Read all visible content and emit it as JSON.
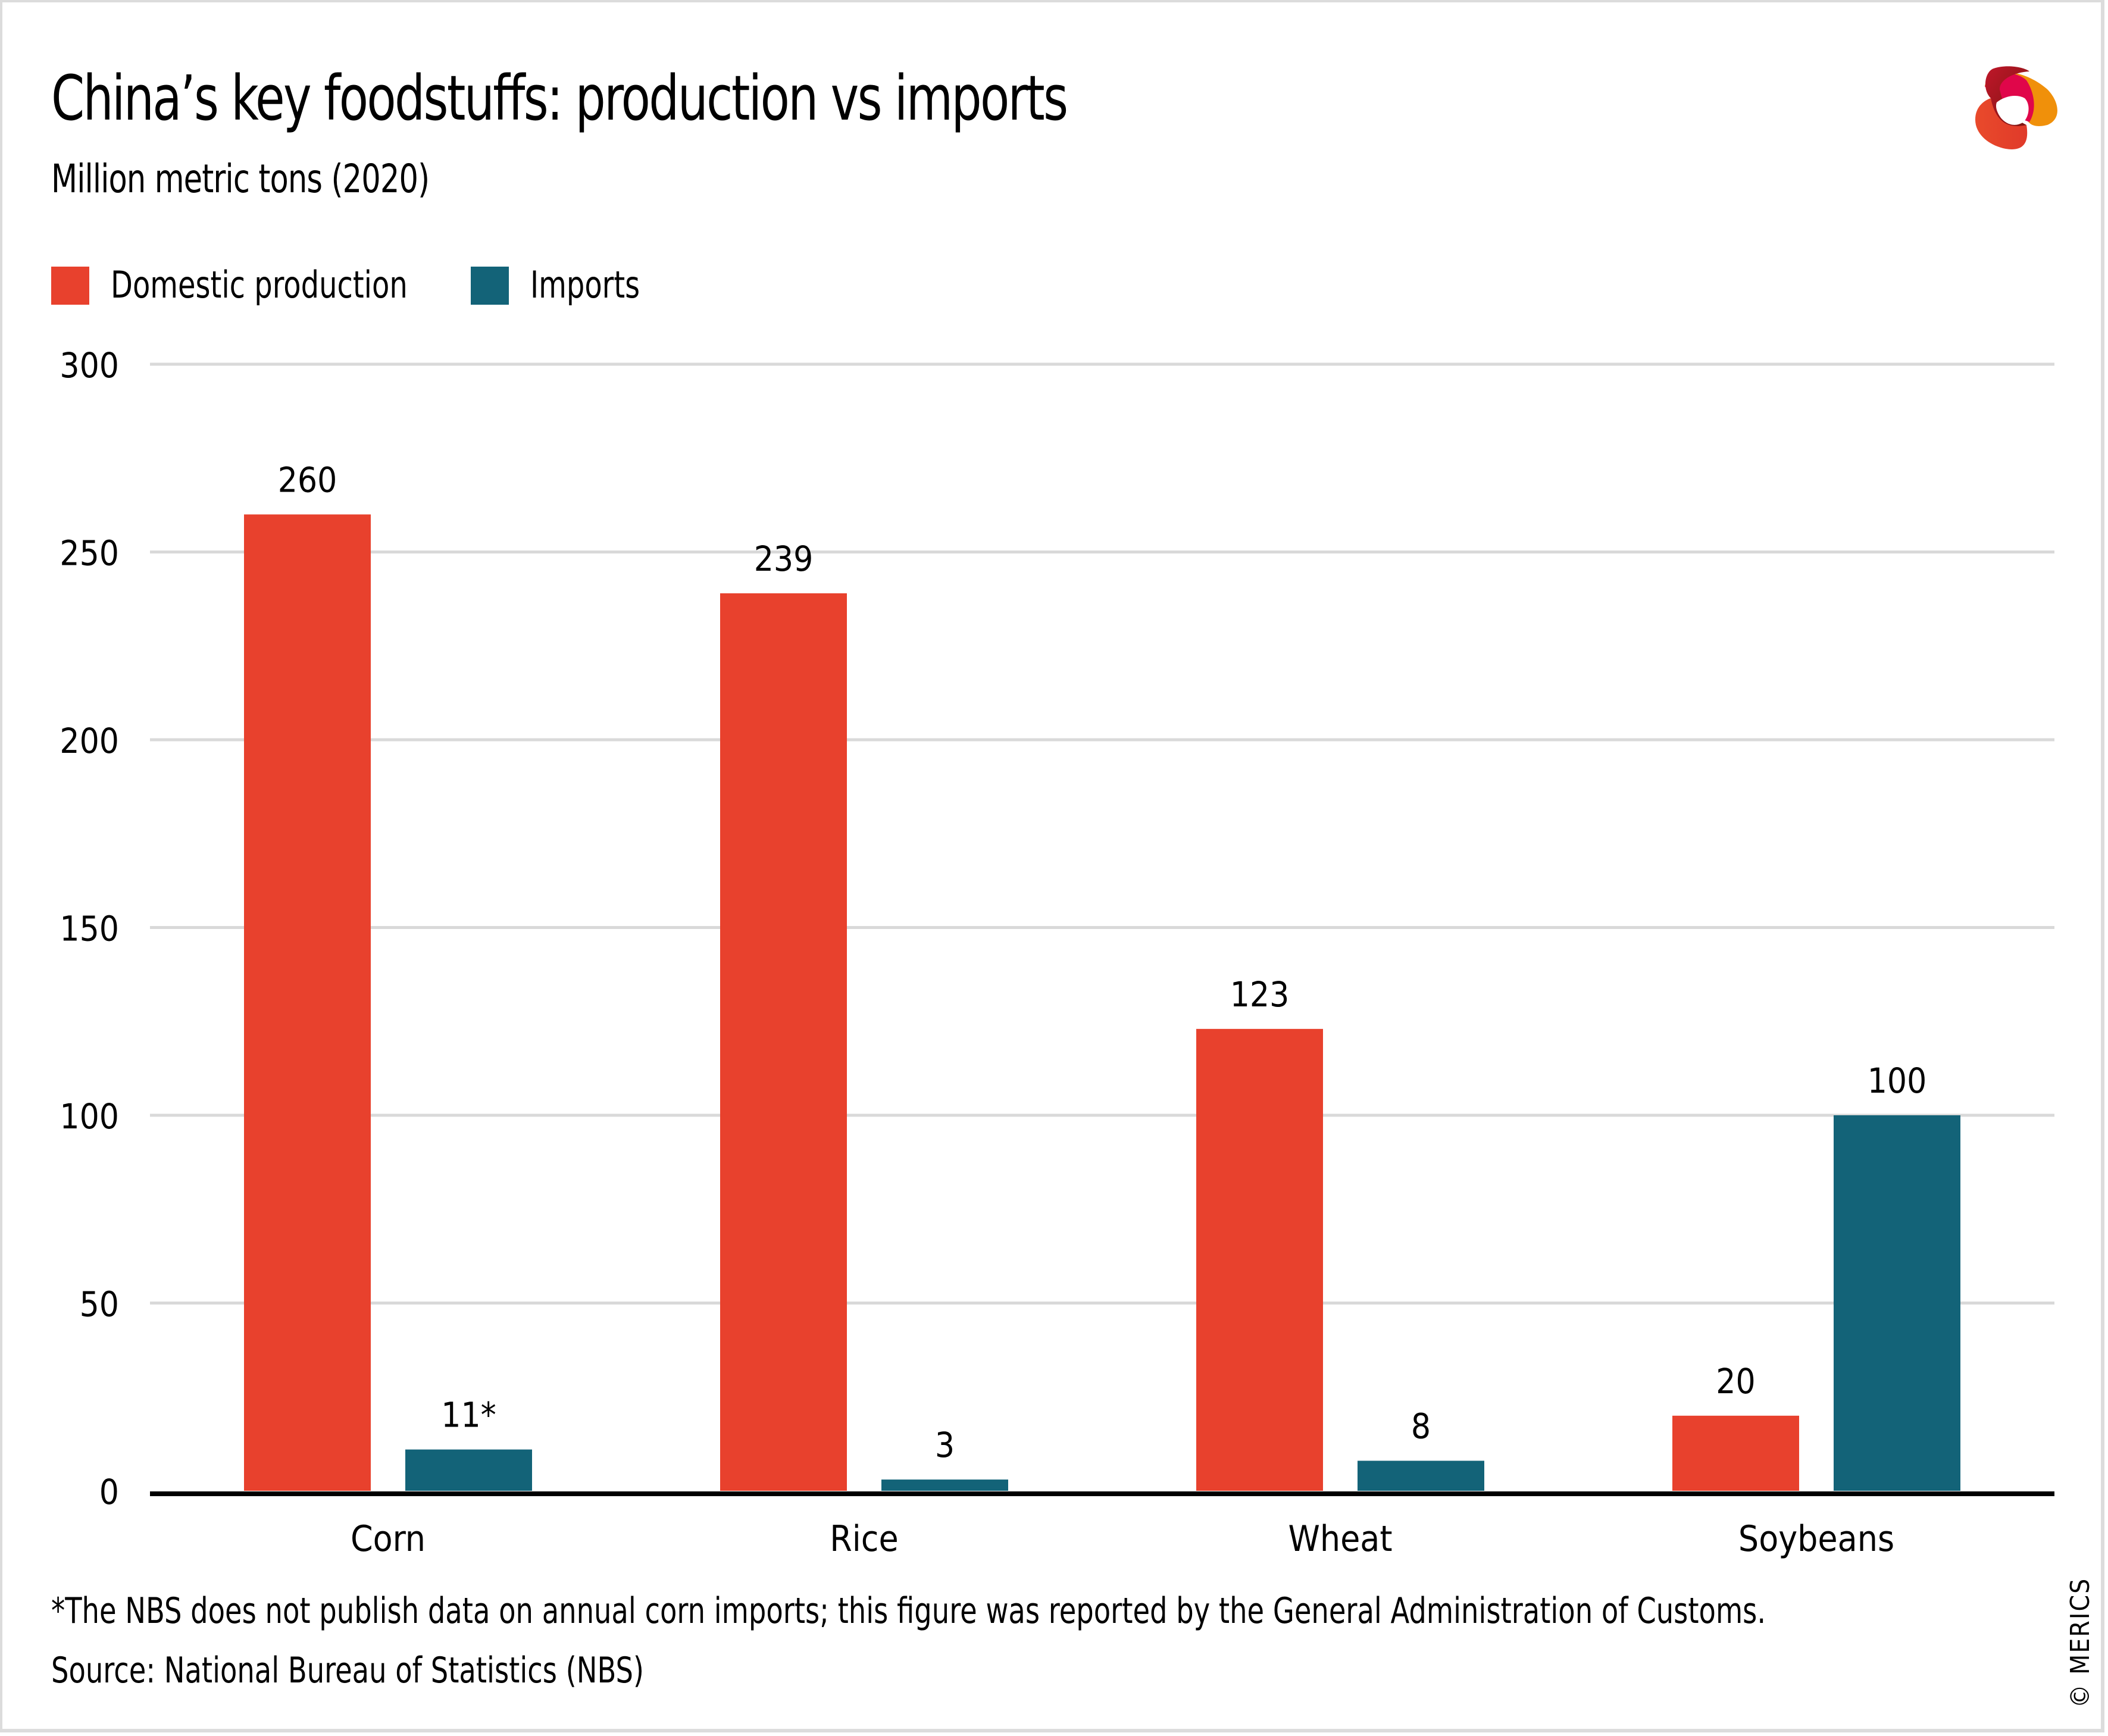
{
  "header": {
    "title": "China’s key foodstuffs: production vs imports",
    "subtitle": "Million metric tons (2020)"
  },
  "legend": [
    {
      "label": "Domestic production",
      "color": "#e8412d"
    },
    {
      "label": "Imports",
      "color": "#136378"
    }
  ],
  "footer": {
    "footnote": "*The NBS does not publish data on annual corn imports; this figure was reported by the General Administration of Customs.",
    "source": "Source: National Bureau of Statistics (NBS)",
    "copyright": "© MERICS"
  },
  "logo": {
    "name": "merics-logo-icon"
  },
  "colors": {
    "production": "#e8412d",
    "imports": "#136378",
    "grid": "#d9d9d9",
    "axis": "#000000"
  },
  "chart_data": {
    "type": "bar",
    "title": "China’s key foodstuffs: production vs imports",
    "subtitle": "Million metric tons (2020)",
    "xlabel": "",
    "ylabel": "Million metric tons",
    "categories": [
      "Corn",
      "Rice",
      "Wheat",
      "Soybeans"
    ],
    "series": [
      {
        "name": "Domestic production",
        "values": [
          260,
          239,
          123,
          20
        ],
        "labels": [
          "260",
          "239",
          "123",
          "20"
        ],
        "color": "#e8412d"
      },
      {
        "name": "Imports",
        "values": [
          11,
          3,
          8,
          100
        ],
        "labels": [
          "11*",
          "3",
          "8",
          "100"
        ],
        "color": "#136378"
      }
    ],
    "ylim": [
      0,
      300
    ],
    "yticks": [
      0,
      50,
      100,
      150,
      200,
      250,
      300
    ],
    "grid": true,
    "legend_position": "top-left"
  }
}
